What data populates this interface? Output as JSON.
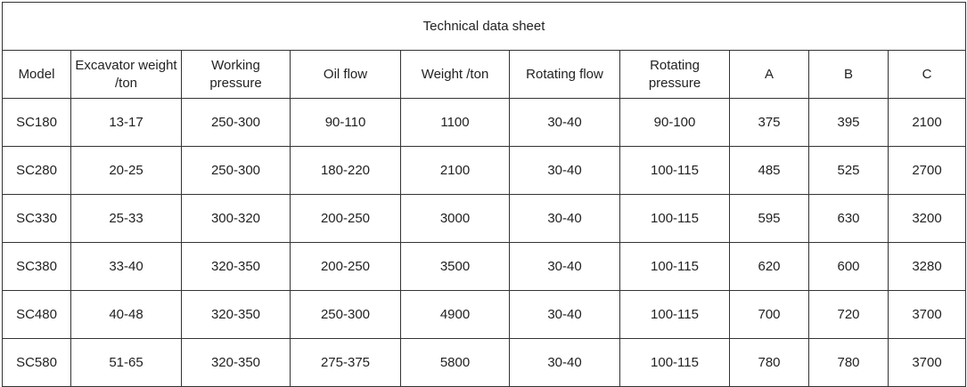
{
  "table": {
    "title": "Technical data sheet",
    "header": [
      [
        "Model"
      ],
      [
        "Excavator weight",
        "/ton"
      ],
      [
        "Working",
        "pressure"
      ],
      [
        "Oil flow"
      ],
      [
        "Weight /ton"
      ],
      [
        "Rotating flow"
      ],
      [
        "Rotating",
        "pressure"
      ],
      [
        "A"
      ],
      [
        "B"
      ],
      [
        "C"
      ]
    ],
    "rows": [
      [
        "SC180",
        "13-17",
        "250-300",
        "90-110",
        "1100",
        "30-40",
        "90-100",
        "375",
        "395",
        "2100"
      ],
      [
        "SC280",
        "20-25",
        "250-300",
        "180-220",
        "2100",
        "30-40",
        "100-115",
        "485",
        "525",
        "2700"
      ],
      [
        "SC330",
        "25-33",
        "300-320",
        "200-250",
        "3000",
        "30-40",
        "100-115",
        "595",
        "630",
        "3200"
      ],
      [
        "SC380",
        "33-40",
        "320-350",
        "200-250",
        "3500",
        "30-40",
        "100-115",
        "620",
        "600",
        "3280"
      ],
      [
        "SC480",
        "40-48",
        "320-350",
        "250-300",
        "4900",
        "30-40",
        "100-115",
        "700",
        "720",
        "3700"
      ],
      [
        "SC580",
        "51-65",
        "320-350",
        "275-375",
        "5800",
        "30-40",
        "100-115",
        "780",
        "780",
        "3700"
      ]
    ]
  }
}
